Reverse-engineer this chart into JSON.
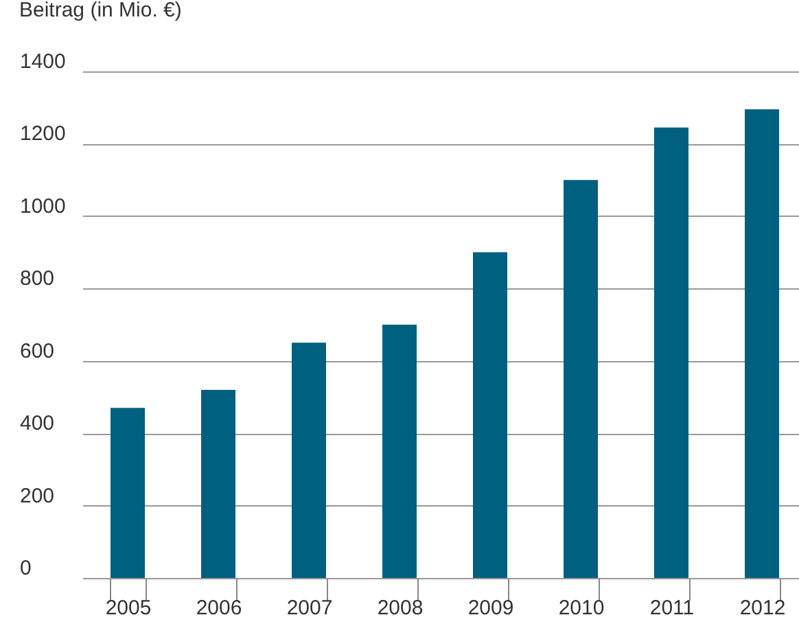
{
  "chart_data": {
    "type": "bar",
    "ylabel": "Beitrag (in Mio. €)",
    "categories": [
      "2005",
      "2006",
      "2007",
      "2008",
      "2009",
      "2010",
      "2011",
      "2012"
    ],
    "values": [
      470,
      520,
      650,
      700,
      900,
      1100,
      1245,
      1295
    ],
    "color": "#00607f",
    "ylim": [
      0,
      1400
    ],
    "yticks": [
      0,
      200,
      400,
      600,
      800,
      {
        "value": 1000,
        "label": "1000"
      },
      {
        "value": 1200,
        "label": "1200"
      },
      {
        "value": 1400,
        "label": "1400"
      }
    ],
    "grid": "y"
  }
}
